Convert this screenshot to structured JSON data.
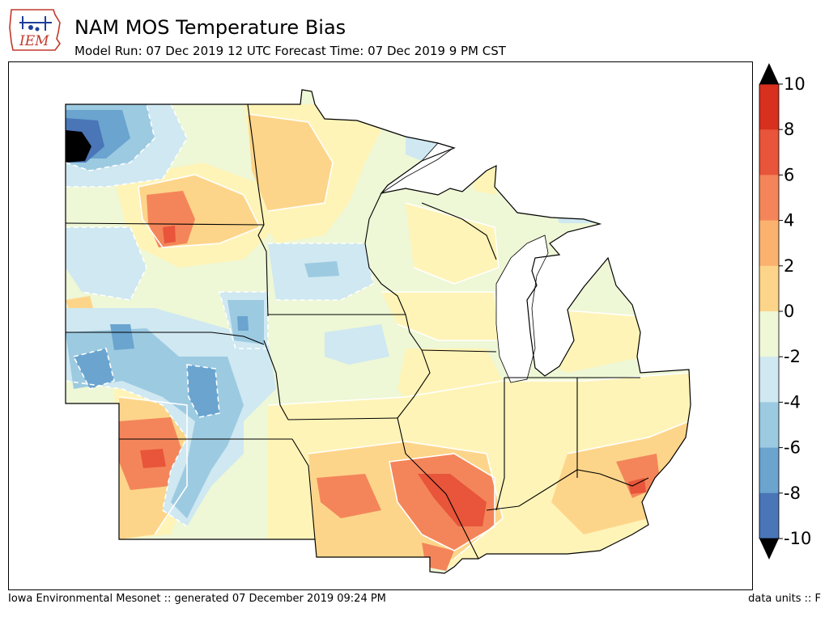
{
  "header": {
    "logo_text": "IEM",
    "title": "NAM MOS Temperature Bias",
    "subtitle": "Model Run: 07 Dec 2019 12 UTC Forecast Time: 07 Dec 2019 9 PM CST"
  },
  "footer": {
    "left": "Iowa Environmental Mesonet :: generated 07 December 2019 09:24 PM",
    "right": "data units :: F"
  },
  "colorbar": {
    "ticks": [
      "10",
      "8",
      "6",
      "4",
      "2",
      "0",
      "-2",
      "-4",
      "-6",
      "-8",
      "-10"
    ],
    "colors": [
      "#d7301f",
      "#e8553a",
      "#f4855a",
      "#fbb26e",
      "#fdd58a",
      "#fff4b8",
      "#eef7d6",
      "#cfe8f1",
      "#9ccae1",
      "#6aa4cf",
      "#4a76b8"
    ],
    "over_color": "#000000",
    "under_color": "#000000"
  },
  "map": {
    "region": "Upper Midwest / Great Lakes",
    "water_color": "#ffffff",
    "contour_line_color": "#ffffff",
    "border_color": "#000000",
    "extreme_low_color": "#000000"
  }
}
